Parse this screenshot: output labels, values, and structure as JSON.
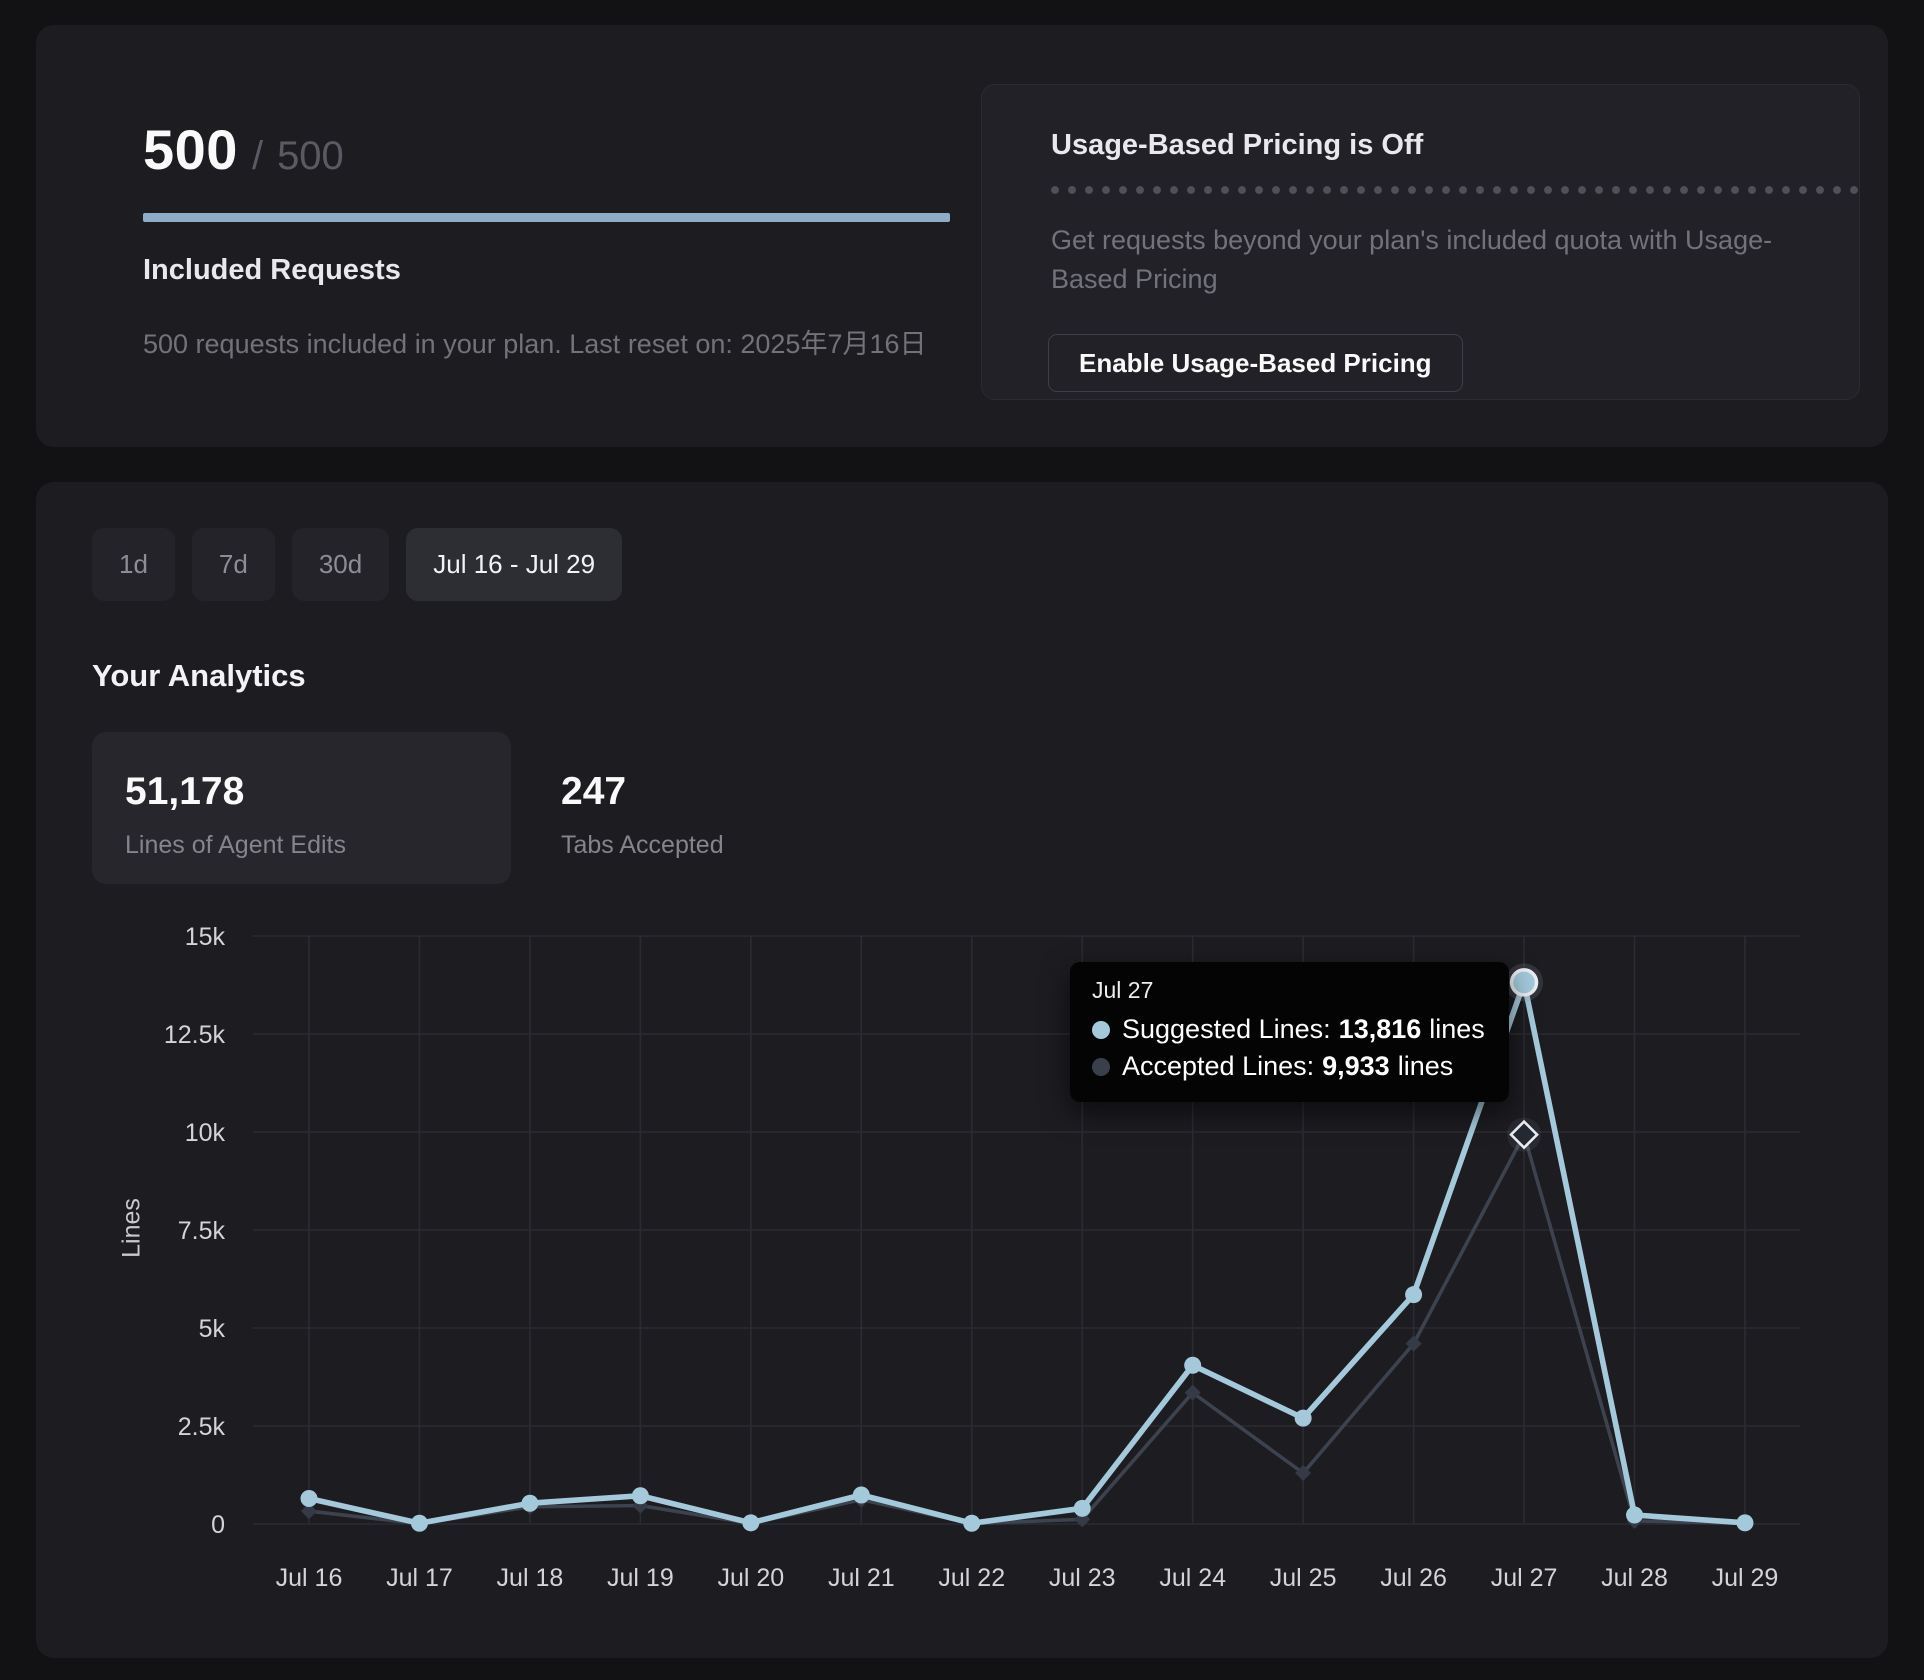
{
  "included": {
    "used": "500",
    "separator": "/",
    "total": "500",
    "title": "Included Requests",
    "description": "500 requests included in your plan. Last reset on: 2025年7月16日",
    "progress_color": "#8EACC8"
  },
  "usage_pricing": {
    "title": "Usage-Based Pricing is Off",
    "description": "Get requests beyond your plan's included quota with Usage-Based Pricing",
    "button_label": "Enable Usage-Based Pricing"
  },
  "range_buttons": [
    {
      "label": "1d",
      "active": false
    },
    {
      "label": "7d",
      "active": false
    },
    {
      "label": "30d",
      "active": false
    },
    {
      "label": "Jul 16 - Jul 29",
      "active": true
    }
  ],
  "analytics": {
    "title": "Your Analytics",
    "stats": [
      {
        "value": "51,178",
        "label": "Lines of Agent Edits",
        "selected": true
      },
      {
        "value": "247",
        "label": "Tabs Accepted",
        "selected": false
      }
    ]
  },
  "tooltip": {
    "date": "Jul 27",
    "rows": [
      {
        "label": "Suggested Lines:",
        "value": "13,816",
        "suffix": "lines",
        "dot_style": "background:#A4C9DB"
      },
      {
        "label": "Accepted Lines:",
        "value": "9,933",
        "suffix": "lines",
        "dot_style": "background:#39404C"
      }
    ]
  },
  "chart_data": {
    "type": "line",
    "title": "",
    "xlabel": "",
    "ylabel": "Lines",
    "categories": [
      "Jul 16",
      "Jul 17",
      "Jul 18",
      "Jul 19",
      "Jul 20",
      "Jul 21",
      "Jul 22",
      "Jul 23",
      "Jul 24",
      "Jul 25",
      "Jul 26",
      "Jul 27",
      "Jul 28",
      "Jul 29"
    ],
    "y_ticks": [
      "0",
      "2.5k",
      "5k",
      "7.5k",
      "10k",
      "12.5k",
      "15k"
    ],
    "ylim": [
      0,
      15000
    ],
    "grid": true,
    "legend_position": "none",
    "hover_index": 11,
    "colors": {
      "grid": "#2B2C32",
      "axis_text": "#D3D4D8",
      "hover_ring": "#E9EDF2"
    },
    "series": [
      {
        "name": "Suggested Lines",
        "color": "#A4C9DB",
        "marker": "circle",
        "values": [
          650,
          20,
          530,
          720,
          30,
          740,
          20,
          400,
          4050,
          2700,
          5850,
          13816,
          230,
          30
        ]
      },
      {
        "name": "Accepted Lines",
        "color": "#3C424E",
        "marker": "diamond",
        "marker_color": "#353B46",
        "values": [
          330,
          5,
          440,
          470,
          15,
          620,
          10,
          120,
          3350,
          1300,
          4600,
          9933,
          80,
          15
        ]
      }
    ]
  }
}
